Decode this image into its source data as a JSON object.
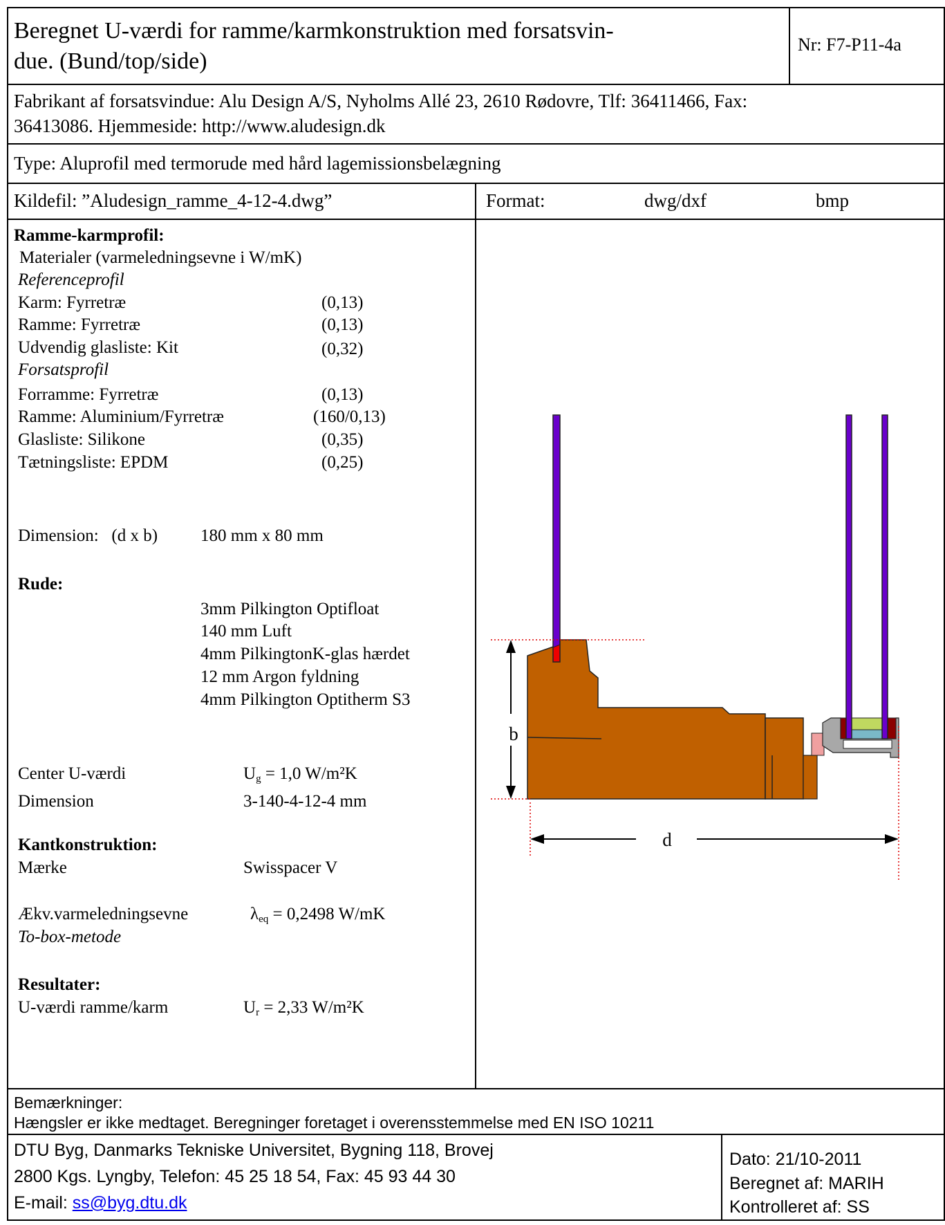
{
  "header": {
    "title_line1": "Beregnet U-værdi for ramme/karmkonstruktion med forsatsvin-",
    "title_line2": "due. (Bund/top/side)",
    "number": "Nr: F7-P11-4a"
  },
  "manufacturer": {
    "line1": "Fabrikant af forsatsvindue: Alu Design A/S, Nyholms Allé 23, 2610 Rødovre, Tlf: 36411466, Fax:",
    "line2": "36413086. Hjemmeside: http://www.aludesign.dk"
  },
  "type_line": "Type: Aluprofil med termorude med hård lagemissionsbelægning",
  "source_file": "Kildefil: ”Aludesign_ramme_4-12-4.dwg”",
  "format": {
    "label": "Format:",
    "opt1": "dwg/dxf",
    "opt2": "bmp"
  },
  "profile": {
    "heading": "Ramme-karmprofil:",
    "materials_heading": "Materialer (varmeledningsevne i W/mK)",
    "reference_heading": "Referenceprofil",
    "reference_items": [
      {
        "name": "Karm: Fyrretræ",
        "value": "(0,13)"
      },
      {
        "name": "Ramme: Fyrretræ",
        "value": "(0,13)"
      },
      {
        "name": "Udvendig glasliste: Kit",
        "value": "(0,32)"
      }
    ],
    "forsats_heading": "Forsatsprofil",
    "forsats_items": [
      {
        "name": "Forramme: Fyrretræ",
        "value": "(0,13)"
      },
      {
        "name": "Ramme: Aluminium/Fyrretræ",
        "value": "(160/0,13)"
      },
      {
        "name": "Glasliste: Silikone",
        "value": "(0,35)"
      },
      {
        "name": "Tætningsliste: EPDM",
        "value": "(0,25)"
      }
    ],
    "dimension_label": "Dimension:   (d x b)",
    "dimension_value": "180 mm x 80 mm"
  },
  "glazing": {
    "heading": "Rude:",
    "layers": [
      "3mm Pilkington Optifloat",
      "140 mm Luft",
      "4mm PilkingtonK-glas hærdet",
      "12 mm Argon fyldning",
      "4mm Pilkington Optitherm S3"
    ],
    "center_label": "Center U-værdi",
    "center_symbol": "U",
    "center_sub": "g",
    "center_value": " = 1,0 W/m²K",
    "dim_label": "Dimension",
    "dim_value": "3-140-4-12-4 mm"
  },
  "edge": {
    "heading": "Kantkonstruktion:",
    "brand_label": "Mærke",
    "brand_value": "Swisspacer V",
    "lambda_label": "Ækv.varmeledningsevne",
    "lambda_symbol": "λ",
    "lambda_sub": "eq",
    "lambda_value": " = 0,2498 W/mK",
    "method": "To-box-metode"
  },
  "results": {
    "heading": "Resultater:",
    "label": "U-værdi ramme/karm",
    "symbol": "U",
    "sub": "r",
    "value": " = 2,33 W/m²K"
  },
  "drawing": {
    "label_b": "b",
    "label_d": "d"
  },
  "remarks": {
    "heading": "Bemærkninger:",
    "text": "Hængsler er ikke medtaget. Beregninger foretaget i overensstemmelse med EN ISO 10211"
  },
  "footer": {
    "line1": "DTU Byg, Danmarks Tekniske Universitet, Bygning 118, Brovej",
    "line2": "2800 Kgs. Lyngby, Telefon: 45 25 18 54, Fax: 45 93 44 30",
    "email_label": "E-mail: ",
    "email": "ss@byg.dtu.dk",
    "date": "Dato: 21/10-2011",
    "calculated_by": "Beregnet af: MARIH",
    "checked_by": "Kontrolleret af: SS"
  },
  "colors": {
    "wood": "#c06000",
    "glass": "#6a00cc",
    "sealant": "#ee0000",
    "aluminium": "#a8a8a8",
    "dim_line": "#dd0000",
    "link": "#0000ee"
  }
}
